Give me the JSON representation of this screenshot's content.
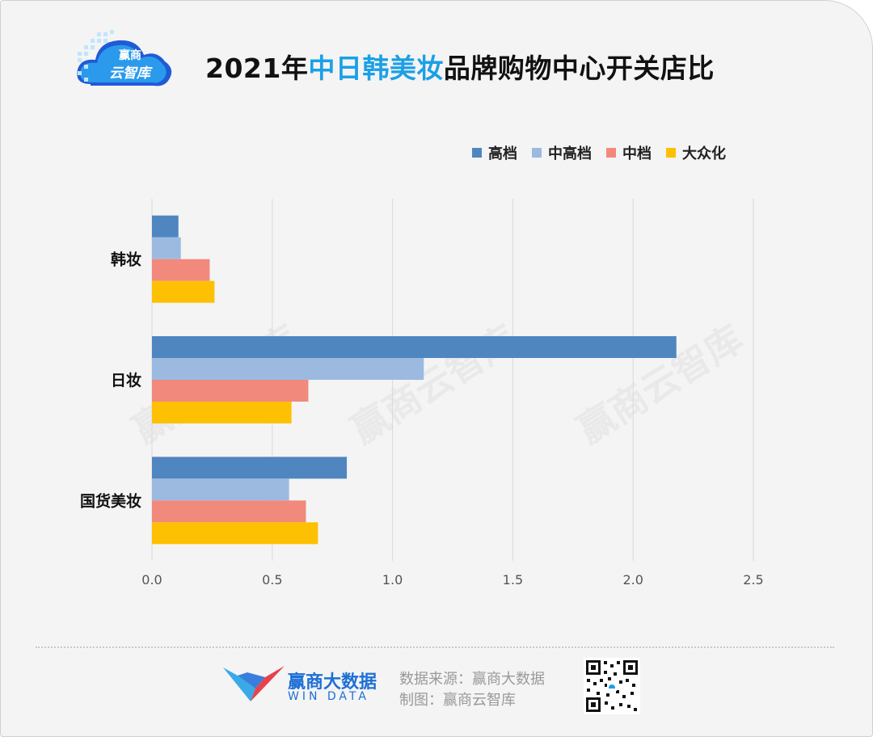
{
  "header": {
    "title_prefix": "2021年",
    "title_highlight": "中日韩美妆",
    "title_suffix": "品牌购物中心开关店比",
    "logo_line1": "赢商",
    "logo_line2": "云智库"
  },
  "watermark": "赢商云智库",
  "colors": {
    "high": "#4f86c0",
    "mid_high": "#9cbae0",
    "mid": "#f2897d",
    "mass": "#fec003",
    "accent": "#1aa0e6"
  },
  "chart_data": {
    "type": "bar",
    "orientation": "horizontal",
    "categories": [
      "韩妆",
      "日妆",
      "国货美妆"
    ],
    "series": [
      {
        "name": "高档",
        "values": [
          0.11,
          2.18,
          0.81
        ]
      },
      {
        "name": "中高档",
        "values": [
          0.12,
          1.13,
          0.57
        ]
      },
      {
        "name": "中档",
        "values": [
          0.24,
          0.65,
          0.64
        ]
      },
      {
        "name": "大众化",
        "values": [
          0.26,
          0.58,
          0.69
        ]
      }
    ],
    "xticks": [
      "0.0",
      "0.5",
      "1.0",
      "1.5",
      "2.0",
      "2.5"
    ],
    "xlim": [
      0,
      2.5
    ],
    "grid": true,
    "legend_position": "top-right"
  },
  "footer": {
    "brand_cn": "赢商大数据",
    "brand_en": "WIN DATA",
    "source": "数据来源：赢商大数据",
    "maker": "制图：赢商云智库"
  }
}
